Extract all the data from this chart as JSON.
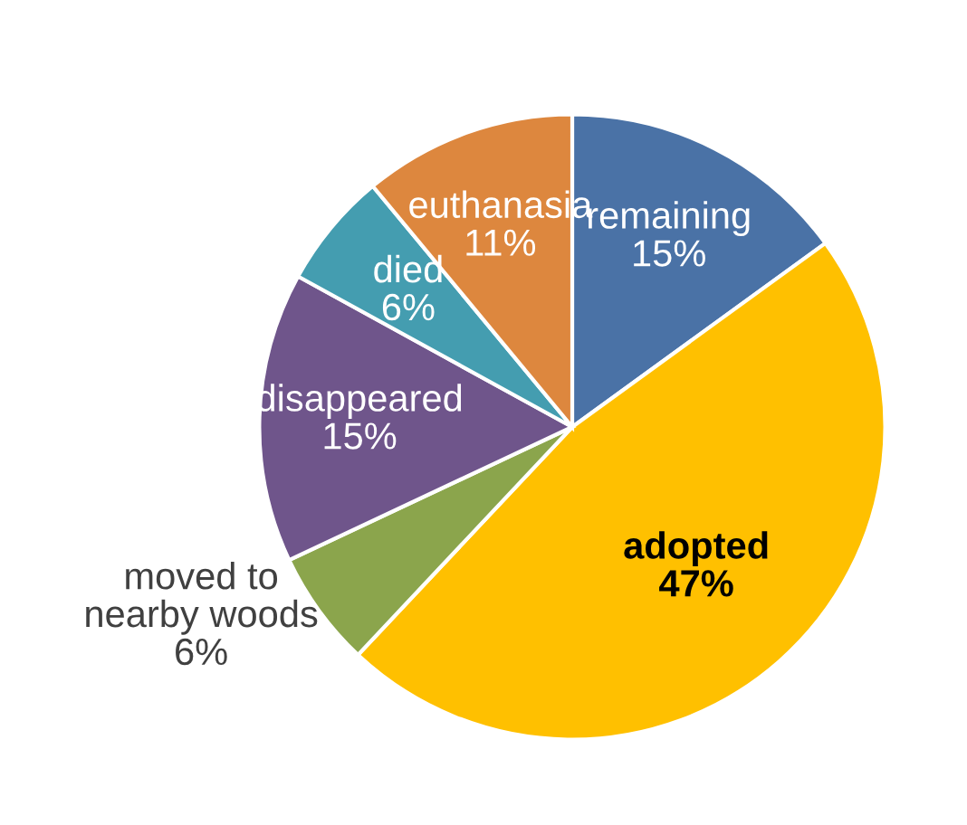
{
  "chart_data": {
    "type": "pie",
    "categories": [
      "remaining",
      "adopted",
      "moved to\nnearby woods",
      "disappeared",
      "died",
      "euthanasia"
    ],
    "values": [
      15,
      47,
      6,
      15,
      6,
      11
    ],
    "value_labels": [
      "15%",
      "47%",
      "6%",
      "15%",
      "6%",
      "11%"
    ],
    "colors": [
      "#4a72a6",
      "#ffc000",
      "#8ba54c",
      "#6f558b",
      "#449db0",
      "#dd873e"
    ],
    "legend": false
  }
}
